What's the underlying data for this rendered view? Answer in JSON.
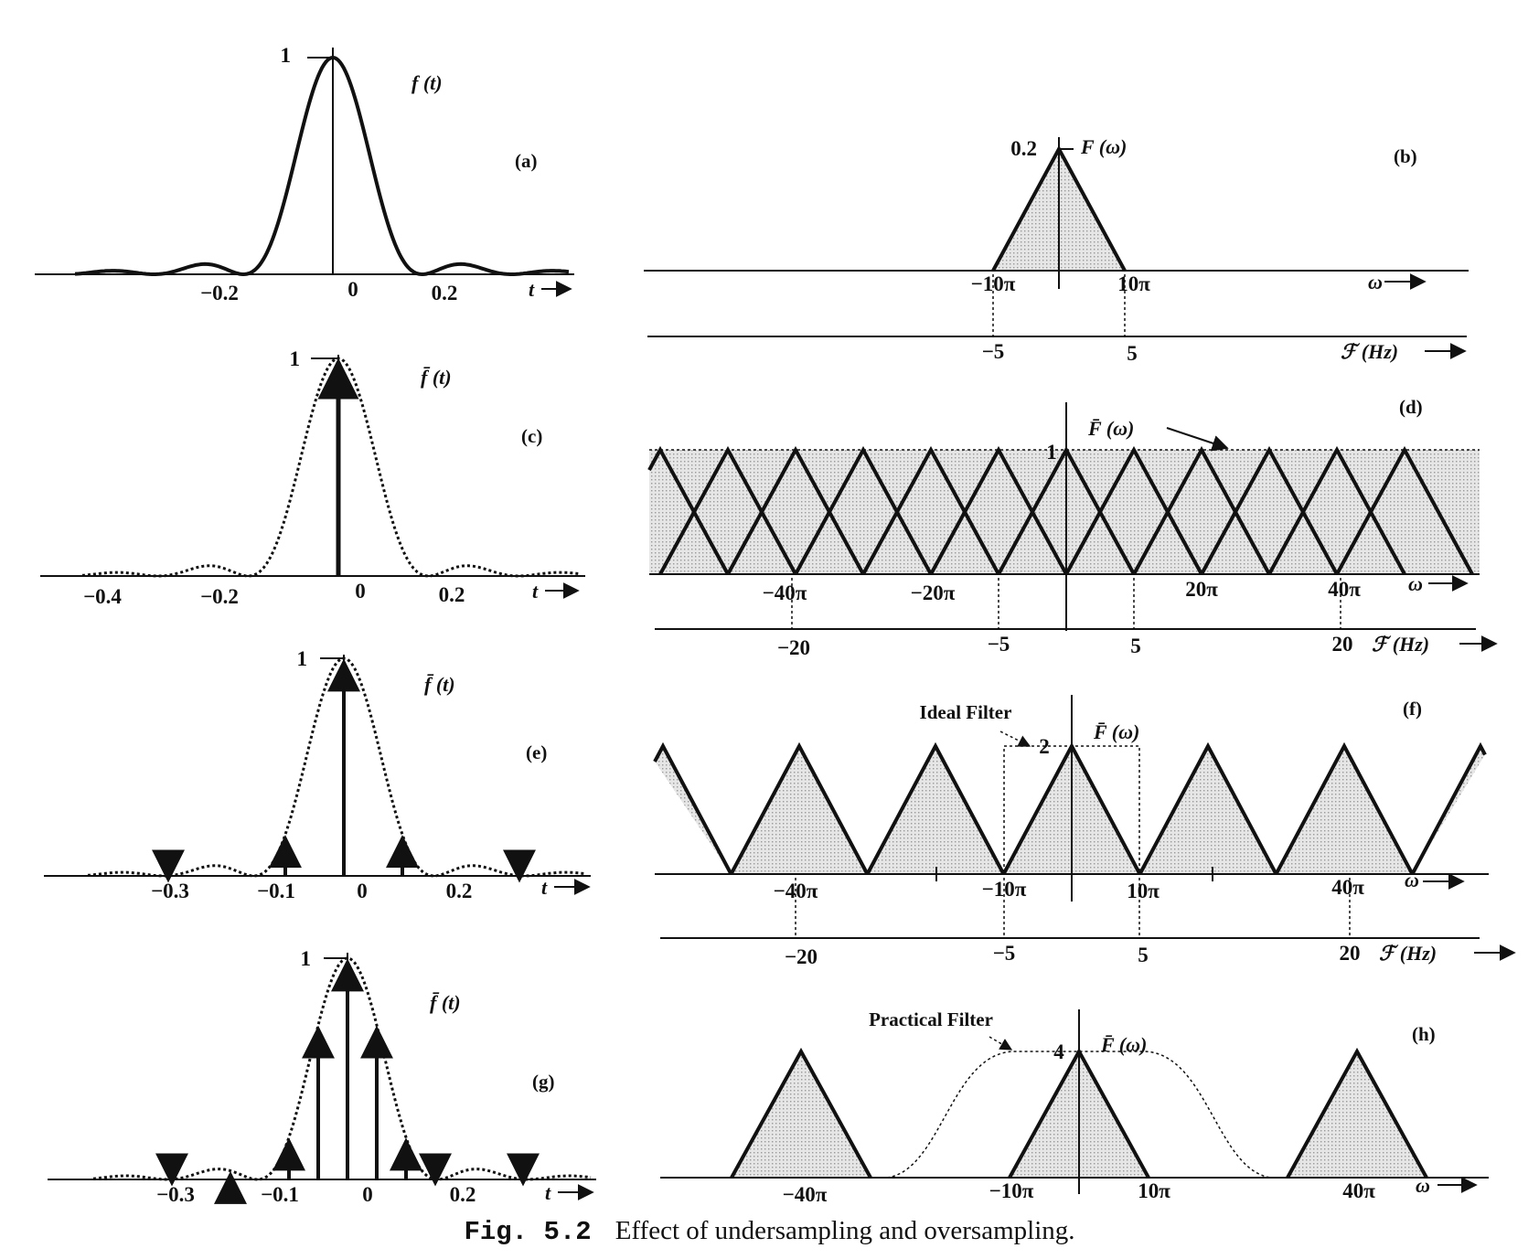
{
  "caption": {
    "number": "Fig. 5.2",
    "text": "Effect of undersampling and oversampling."
  },
  "colors": {
    "ink": "#111111",
    "shade": "#c8c8c8"
  },
  "panels": {
    "a": {
      "panel_label": "(a)",
      "func_label": "f (t)",
      "peak_label": "1",
      "ticks": [
        "−0.2",
        "0",
        "0.2"
      ],
      "axis_label": "t"
    },
    "b": {
      "panel_label": "(b)",
      "func_label": "F (ω)",
      "peak_label": "0.2",
      "ticks": [
        "−10π",
        "10π"
      ],
      "axis_label": "ω",
      "hz_ticks": [
        "−5",
        "5"
      ],
      "hz_label": "ℱ (Hz)"
    },
    "c": {
      "panel_label": "(c)",
      "func_label": "f̄ (t)",
      "peak_label": "1",
      "ticks": [
        "−0.4",
        "−0.2",
        "0",
        "0.2"
      ],
      "axis_label": "t"
    },
    "d": {
      "panel_label": "(d)",
      "func_label": "F̄ (ω)",
      "peak_label": "1",
      "ticks": [
        "−40π",
        "−20π",
        "20π",
        "40π"
      ],
      "axis_label": "ω",
      "hz_ticks": [
        "−20",
        "−5",
        "5",
        "20"
      ],
      "hz_label": "ℱ (Hz)"
    },
    "e": {
      "panel_label": "(e)",
      "func_label": "f̄ (t)",
      "peak_label": "1",
      "ticks": [
        "−0.3",
        "−0.1",
        "0",
        "0.2"
      ],
      "axis_label": "t"
    },
    "f": {
      "panel_label": "(f)",
      "func_label": "F̄ (ω)",
      "peak_label": "2",
      "filter_label": "Ideal Filter",
      "ticks": [
        "−40π",
        "−10π",
        "10π",
        "40π"
      ],
      "axis_label": "ω",
      "hz_ticks": [
        "−20",
        "−5",
        "5",
        "20"
      ],
      "hz_label": "ℱ (Hz)"
    },
    "g": {
      "panel_label": "(g)",
      "func_label": "f̄ (t)",
      "peak_label": "1",
      "ticks": [
        "−0.3",
        "−0.1",
        "0",
        "0.2"
      ],
      "axis_label": "t"
    },
    "h": {
      "panel_label": "(h)",
      "func_label": "F̄ (ω)",
      "peak_label": "4",
      "filter_label": "Practical Filter",
      "ticks": [
        "−40π",
        "−10π",
        "10π",
        "40π"
      ],
      "axis_label": "ω"
    }
  },
  "chart_data": [
    {
      "panel": "(a)",
      "type": "line",
      "description_curve": "sinc-squared pulse",
      "x_ticks": [
        -0.2,
        0,
        0.2
      ],
      "y_peak": 1,
      "x_range": [
        -0.5,
        0.45
      ]
    },
    {
      "panel": "(b)",
      "type": "area",
      "x": [
        -10,
        0,
        10
      ],
      "x_unit": "π rad/s",
      "y": [
        0,
        0.2,
        0
      ],
      "hz": [
        -5,
        5
      ],
      "y_peak": 0.2
    },
    {
      "panel": "(c)",
      "type": "line",
      "sample_times": [
        0
      ],
      "sample_values": [
        1
      ],
      "x_ticks": [
        -0.4,
        -0.2,
        0,
        0.2
      ]
    },
    {
      "panel": "(d)",
      "type": "area",
      "triangle_centers_pi": [
        -60,
        -50,
        -40,
        -30,
        -20,
        -10,
        0,
        10,
        20,
        30,
        40,
        50
      ],
      "triangle_halfwidth_pi": 10,
      "y_peak": 1,
      "hz": [
        -20,
        -5,
        5,
        20
      ]
    },
    {
      "panel": "(e)",
      "type": "line",
      "sample_times": [
        -0.3,
        -0.1,
        0,
        0.1,
        0.3
      ],
      "x_ticks": [
        -0.3,
        -0.1,
        0,
        0.2
      ]
    },
    {
      "panel": "(f)",
      "type": "area",
      "triangle_centers_pi": [
        -60,
        -40,
        -20,
        0,
        20,
        40,
        60
      ],
      "triangle_halfwidth_pi": 10,
      "y_peak": 2,
      "hz": [
        -20,
        -5,
        5,
        20
      ],
      "filter": "ideal, ±10π"
    },
    {
      "panel": "(g)",
      "type": "line",
      "sample_times": [
        -0.3,
        -0.2,
        -0.1,
        -0.05,
        0,
        0.05,
        0.1,
        0.15,
        0.3
      ],
      "x_ticks": [
        -0.3,
        -0.1,
        0,
        0.2
      ]
    },
    {
      "panel": "(h)",
      "type": "area",
      "triangle_centers_pi": [
        -40,
        0,
        40
      ],
      "triangle_halfwidth_pi": 10,
      "y_peak": 4,
      "filter": "practical"
    }
  ]
}
